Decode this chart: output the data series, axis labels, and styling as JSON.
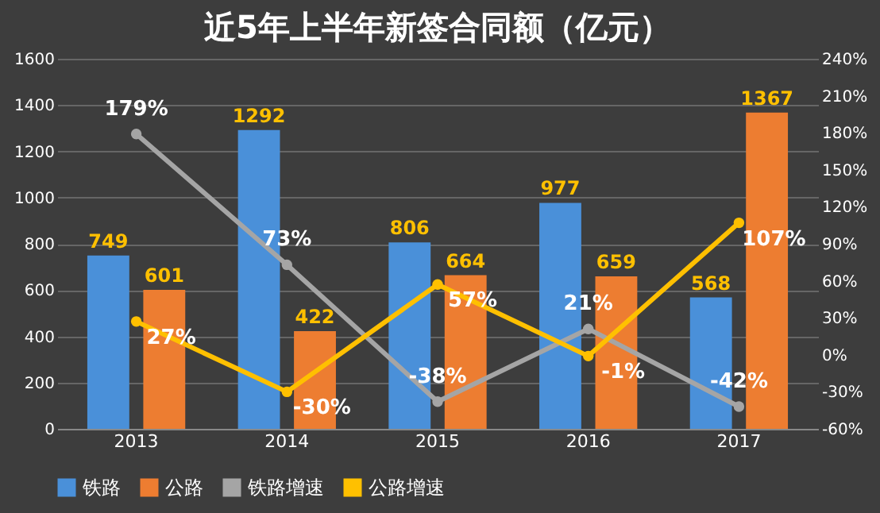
{
  "chart_data": {
    "type": "bar",
    "title": "近5年上半年新签合同额（亿元）",
    "categories": [
      "2013",
      "2014",
      "2015",
      "2016",
      "2017"
    ],
    "series": [
      {
        "name": "铁路",
        "color": "#4a90d9",
        "values": [
          749,
          1292,
          806,
          977,
          568
        ]
      },
      {
        "name": "公路",
        "color": "#ed7d31",
        "values": [
          601,
          422,
          664,
          659,
          1367
        ]
      },
      {
        "name": "铁路增速",
        "type": "line",
        "axis": "y2",
        "color": "#a5a5a5",
        "values": [
          179,
          73,
          -38,
          21,
          -42
        ],
        "value_labels": [
          "179%",
          "73%",
          "-38%",
          "21%",
          "-42%"
        ]
      },
      {
        "name": "公路增速",
        "type": "line",
        "axis": "y2",
        "color": "#ffc000",
        "values": [
          27,
          -30,
          57,
          -1,
          107
        ],
        "value_labels": [
          "27%",
          "-30%",
          "57%",
          "-1%",
          "107%"
        ]
      }
    ],
    "data_labels": true,
    "ylim": [
      0,
      1600
    ],
    "yticks": [
      0,
      200,
      400,
      600,
      800,
      1000,
      1200,
      1400,
      1600
    ],
    "y2lim": [
      -60,
      240
    ],
    "y2ticks": [
      {
        "value": -60,
        "label": "-60%"
      },
      {
        "value": -30,
        "label": "-30%"
      },
      {
        "value": 0,
        "label": "0%"
      },
      {
        "value": 30,
        "label": "30%"
      },
      {
        "value": 60,
        "label": "60%"
      },
      {
        "value": 90,
        "label": "90%"
      },
      {
        "value": 120,
        "label": "120%"
      },
      {
        "value": 150,
        "label": "150%"
      },
      {
        "value": 180,
        "label": "180%"
      },
      {
        "value": 210,
        "label": "210%"
      },
      {
        "value": 240,
        "label": "240%"
      }
    ],
    "grid": "y",
    "legend": "bottom",
    "marker": "circle",
    "line_style": "solid"
  }
}
